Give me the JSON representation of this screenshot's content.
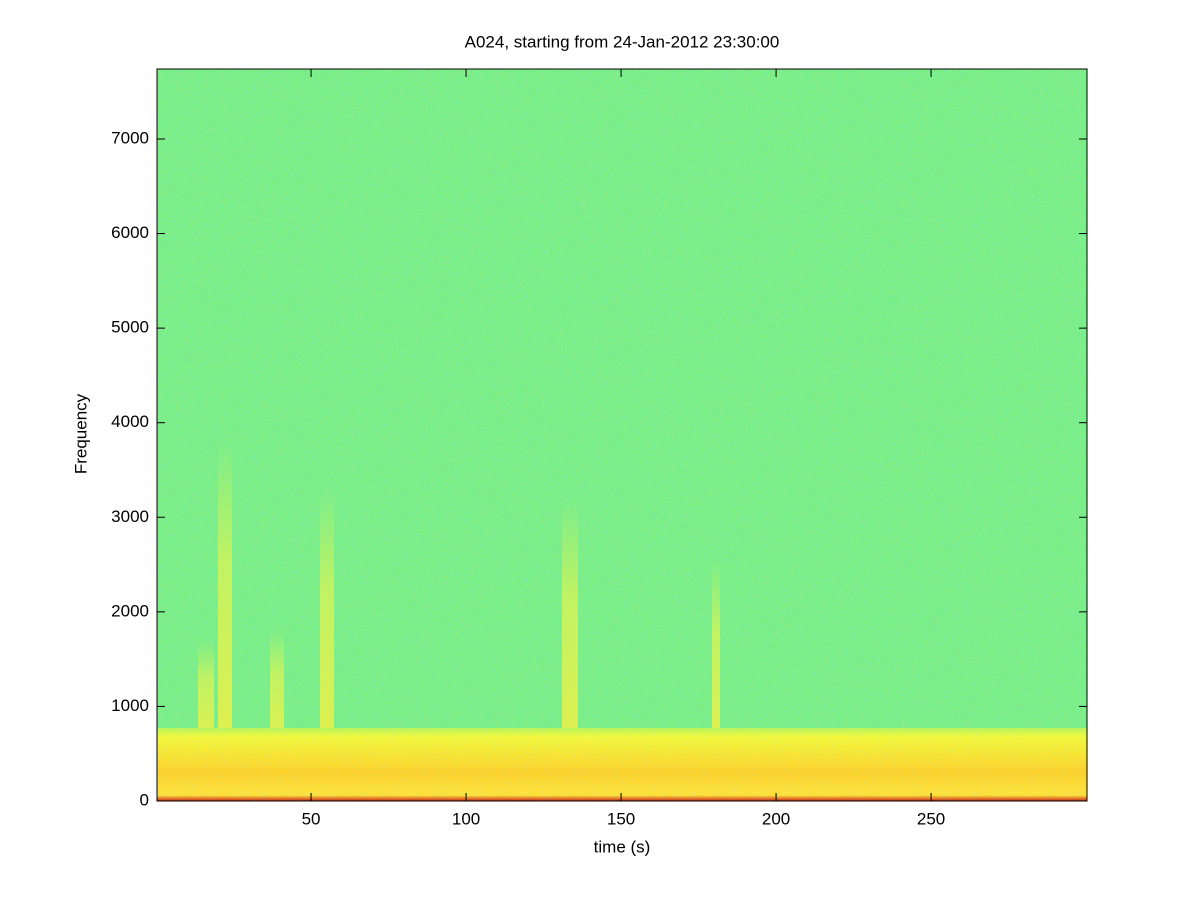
{
  "chart_data": {
    "type": "spectrogram",
    "title": "A024, starting from 24-Jan-2012 23:30:00",
    "xlabel": "time (s)",
    "ylabel": "Frequency",
    "xlim": [
      0.3,
      300.3
    ],
    "ylim": [
      0,
      7740
    ],
    "xticks": [
      50,
      100,
      150,
      200,
      250
    ],
    "yticks": [
      0,
      1000,
      2000,
      3000,
      4000,
      5000,
      6000,
      7000
    ]
  }
}
